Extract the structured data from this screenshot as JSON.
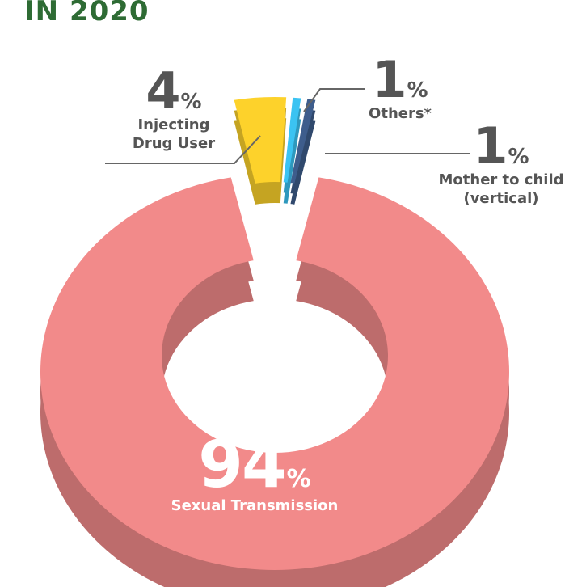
{
  "chart_data": {
    "type": "donut",
    "title": "IN 2020",
    "categories": [
      "Injecting Drug User",
      "Others*",
      "Mother to child (vertical)",
      "Sexual Transmission"
    ],
    "values": [
      4,
      1,
      1,
      94
    ],
    "unit": "%",
    "colors": [
      "#fdd22b",
      "#3bc3f2",
      "#3e5d8c",
      "#f28a8a"
    ]
  }
}
